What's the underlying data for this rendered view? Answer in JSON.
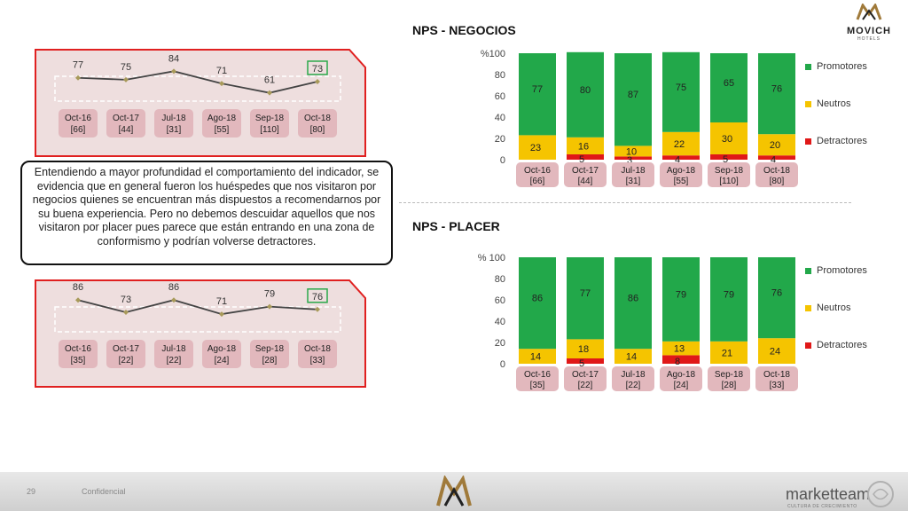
{
  "header": {
    "logo_text": "MOVICH",
    "logo_sub": "HOTELS"
  },
  "callout_text": "Entendiendo a mayor profundidad el comportamiento del indicador, se evidencia que en general fueron los huéspedes que nos visitaron por negocios quienes se encuentran más dispuestos a recomendarnos por su buena experiencia. Pero no debemos descuidar aquellos que nos visitaron por placer pues parece que están entrando en una zona de conformismo y podrían volverse detractores.",
  "footer": {
    "page_number": "29",
    "confidential": "Confidencial",
    "brand": "marketteam",
    "brand_sub": "CULTURA DE CRECIMIENTO"
  },
  "colors": {
    "promotores": "#22a84a",
    "neutros": "#f5c400",
    "detractores": "#e01818",
    "label_band": "#e2b8bd",
    "accent_red": "#e02020",
    "highlight_green": "#2aa84a"
  },
  "chart_data": [
    {
      "type": "bar",
      "stacked": true,
      "title": "NPS - NEGOCIOS",
      "categories": [
        "Oct-16",
        "Oct-17",
        "Jul-18",
        "Ago-18",
        "Sep-18",
        "Oct-18"
      ],
      "sample_sizes": [
        "[66]",
        "[44]",
        "[31]",
        "[55]",
        "[110]",
        "[80]"
      ],
      "series": [
        {
          "name": "Detractores",
          "values": [
            0,
            5,
            3,
            4,
            5,
            4
          ]
        },
        {
          "name": "Neutros",
          "values": [
            23,
            16,
            10,
            22,
            30,
            20
          ]
        },
        {
          "name": "Promotores",
          "values": [
            77,
            80,
            87,
            75,
            65,
            76
          ]
        }
      ],
      "y_labels": [
        "%100",
        "80",
        "60",
        "40",
        "20",
        "0"
      ],
      "ylim": [
        0,
        100
      ],
      "legend_position": "right"
    },
    {
      "type": "bar",
      "stacked": true,
      "title": "NPS - PLACER",
      "categories": [
        "Oct-16",
        "Oct-17",
        "Jul-18",
        "Ago-18",
        "Sep-18",
        "Oct-18"
      ],
      "sample_sizes": [
        "[35]",
        "[22]",
        "[22]",
        "[24]",
        "[28]",
        "[33]"
      ],
      "series": [
        {
          "name": "Detractores",
          "values": [
            0,
            5,
            0,
            8,
            0,
            0
          ]
        },
        {
          "name": "Neutros",
          "values": [
            14,
            18,
            14,
            13,
            21,
            24
          ]
        },
        {
          "name": "Promotores",
          "values": [
            86,
            77,
            86,
            79,
            79,
            76
          ]
        }
      ],
      "y_labels": [
        "% 100",
        "80",
        "60",
        "40",
        "20",
        "0"
      ],
      "ylim": [
        0,
        100
      ],
      "legend_position": "right"
    },
    {
      "type": "line",
      "categories": [
        "Oct-16",
        "Oct-17",
        "Jul-18",
        "Ago-18",
        "Sep-18",
        "Oct-18"
      ],
      "sample_sizes": [
        "[66]",
        "[44]",
        "[31]",
        "[55]",
        "[110]",
        "[80]"
      ],
      "values": [
        77,
        75,
        84,
        71,
        61,
        73
      ],
      "highlight_index": 5
    },
    {
      "type": "line",
      "categories": [
        "Oct-16",
        "Oct-17",
        "Jul-18",
        "Ago-18",
        "Sep-18",
        "Oct-18"
      ],
      "sample_sizes": [
        "[35]",
        "[22]",
        "[22]",
        "[24]",
        "[28]",
        "[33]"
      ],
      "values": [
        86,
        73,
        86,
        71,
        79,
        76
      ],
      "highlight_index": 5
    }
  ]
}
